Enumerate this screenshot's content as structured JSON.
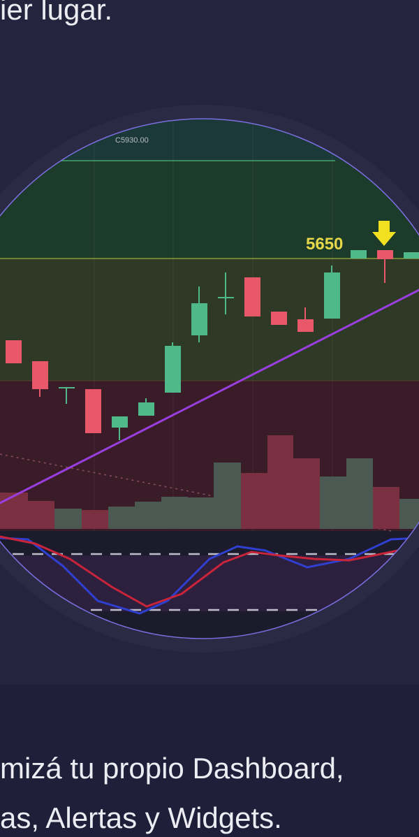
{
  "header": {
    "text": "ier lugar."
  },
  "illustration": {
    "price_label": "C5930.00",
    "level_label": "5650"
  },
  "caption": {
    "lines": [
      "mizá tu propio Dashboard,",
      "as, Alertas y Widgets."
    ]
  }
}
